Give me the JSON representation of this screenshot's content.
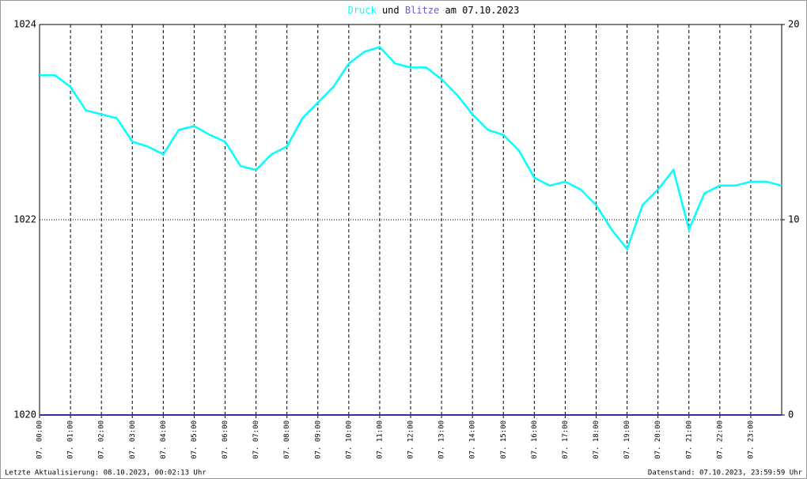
{
  "chart_data": {
    "type": "line",
    "title": [
      "Druck",
      "und",
      "Blitze",
      "am 07.10.2023"
    ],
    "x": [
      0,
      0.5,
      1,
      1.5,
      2,
      2.5,
      3,
      3.5,
      4,
      4.5,
      5,
      5.5,
      6,
      6.5,
      7,
      7.5,
      8,
      8.5,
      9,
      9.5,
      10,
      10.5,
      11,
      11.5,
      12,
      12.5,
      13,
      13.5,
      14,
      14.5,
      15,
      15.5,
      16,
      16.5,
      17,
      17.5,
      18,
      18.5,
      19,
      19.5,
      20,
      20.5,
      21,
      21.5,
      22,
      22.5,
      23,
      23.5,
      24
    ],
    "series": [
      {
        "name": "Druck",
        "color": "#00ffff",
        "values": [
          1023.48,
          1023.48,
          1023.36,
          1023.12,
          1023.08,
          1023.04,
          1022.8,
          1022.75,
          1022.67,
          1022.92,
          1022.96,
          1022.87,
          1022.8,
          1022.55,
          1022.51,
          1022.67,
          1022.75,
          1023.04,
          1023.2,
          1023.36,
          1023.6,
          1023.72,
          1023.77,
          1023.6,
          1023.56,
          1023.56,
          1023.44,
          1023.28,
          1023.08,
          1022.92,
          1022.87,
          1022.71,
          1022.43,
          1022.35,
          1022.39,
          1022.31,
          1022.15,
          1021.9,
          1021.7,
          1022.15,
          1022.31,
          1022.51,
          1021.9,
          1022.27,
          1022.35,
          1022.35,
          1022.39,
          1022.39,
          1022.35
        ]
      },
      {
        "name": "Blitze",
        "color": "#3a2f9a",
        "axis": "y2",
        "values": [
          0,
          0,
          0,
          0,
          0,
          0,
          0,
          0,
          0,
          0,
          0,
          0,
          0,
          0,
          0,
          0,
          0,
          0,
          0,
          0,
          0,
          0,
          0,
          0,
          0,
          0,
          0,
          0,
          0,
          0,
          0,
          0,
          0,
          0,
          0,
          0,
          0,
          0,
          0,
          0,
          0,
          0,
          0,
          0,
          0,
          0,
          0,
          0,
          0
        ]
      }
    ],
    "xlim": [
      0,
      24
    ],
    "xticks": [
      {
        "value": 0,
        "label": "07. 00:00"
      },
      {
        "value": 1,
        "label": "07. 01:00"
      },
      {
        "value": 2,
        "label": "07. 02:00"
      },
      {
        "value": 3,
        "label": "07. 03:00"
      },
      {
        "value": 4,
        "label": "07. 04:00"
      },
      {
        "value": 5,
        "label": "07. 05:00"
      },
      {
        "value": 6,
        "label": "07. 06:00"
      },
      {
        "value": 7,
        "label": "07. 07:00"
      },
      {
        "value": 8,
        "label": "07. 08:00"
      },
      {
        "value": 9,
        "label": "07. 09:00"
      },
      {
        "value": 10,
        "label": "07. 10:00"
      },
      {
        "value": 11,
        "label": "07. 11:00"
      },
      {
        "value": 12,
        "label": "07. 12:00"
      },
      {
        "value": 13,
        "label": "07. 13:00"
      },
      {
        "value": 14,
        "label": "07. 14:00"
      },
      {
        "value": 15,
        "label": "07. 15:00"
      },
      {
        "value": 16,
        "label": "07. 16:00"
      },
      {
        "value": 17,
        "label": "07. 17:00"
      },
      {
        "value": 18,
        "label": "07. 18:00"
      },
      {
        "value": 19,
        "label": "07. 19:00"
      },
      {
        "value": 20,
        "label": "07. 20:00"
      },
      {
        "value": 21,
        "label": "07. 21:00"
      },
      {
        "value": 22,
        "label": "07. 22:00"
      },
      {
        "value": 23,
        "label": "07. 23:00"
      }
    ],
    "ylim": [
      1020,
      1024
    ],
    "yticks": [
      1020,
      1022,
      1024
    ],
    "y2lim": [
      0,
      20
    ],
    "y2ticks": [
      0,
      10,
      20
    ],
    "grid": true,
    "footnotes": [
      "Letzte Aktualisierung: 08.10.2023, 00:02:13 Uhr",
      "Datenstand: 07.10.2023, 23:59:59 Uhr"
    ]
  }
}
